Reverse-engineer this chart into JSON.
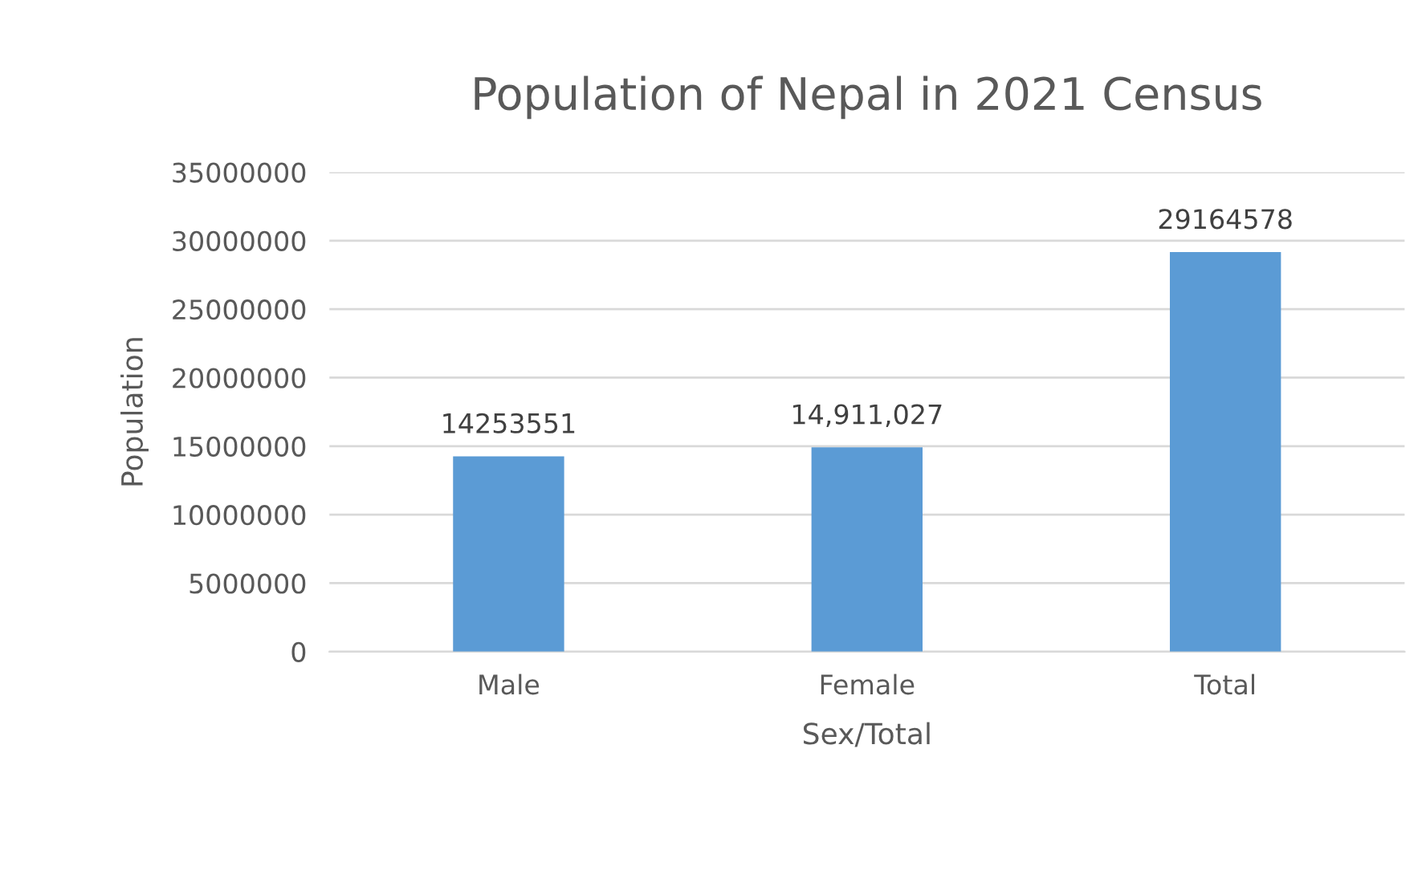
{
  "chart_data": {
    "type": "bar",
    "title": "Population of Nepal in 2021 Census",
    "xlabel": "Sex/Total",
    "ylabel": "Population",
    "categories": [
      "Male",
      "Female",
      "Total"
    ],
    "values": [
      14253551,
      14911027,
      29164578
    ],
    "value_labels": [
      "14253551",
      "14,911,027",
      "29164578"
    ],
    "color": "#5b9bd5",
    "ylim": [
      0,
      35000000
    ],
    "yticks": [
      0,
      5000000,
      10000000,
      15000000,
      20000000,
      25000000,
      30000000,
      35000000
    ],
    "grid": "y",
    "legend": false
  }
}
